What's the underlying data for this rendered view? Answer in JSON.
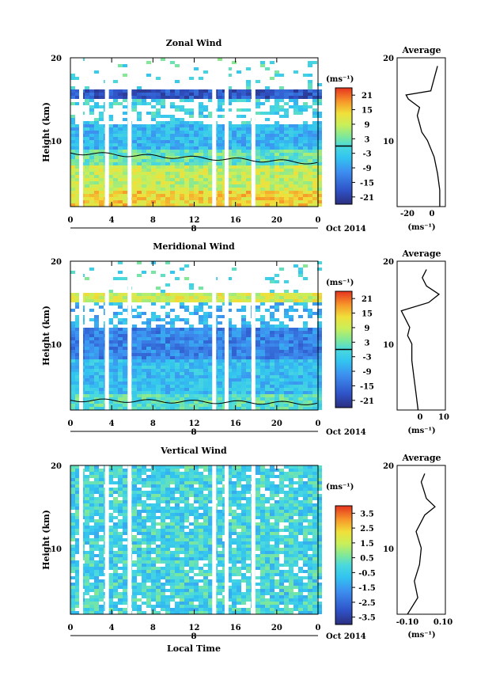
{
  "panels": [
    {
      "title": "Zonal Wind",
      "ylabel": "Height (km)",
      "yticks": [
        "20",
        "10"
      ],
      "xticks": [
        "0",
        "4",
        "8",
        "12",
        "16",
        "20",
        "0"
      ],
      "date_day": "8",
      "date_month": "Oct 2014",
      "unit_label": "(ms⁻¹)",
      "colorbar_ticks": [
        "21",
        "15",
        "9",
        "3",
        "-3",
        "-9",
        "-15",
        "-21"
      ],
      "colorbar_range": [
        -24,
        24
      ],
      "zero_contour": 0,
      "side_title": "Average",
      "side_yticks": [
        "20",
        "10"
      ],
      "side_xticks": [
        "-20",
        "0"
      ],
      "side_xlabel": "(ms⁻¹)"
    },
    {
      "title": "Meridional Wind",
      "ylabel": "Height (km)",
      "yticks": [
        "20",
        "10"
      ],
      "xticks": [
        "0",
        "4",
        "8",
        "12",
        "16",
        "20",
        "0"
      ],
      "date_day": "8",
      "date_month": "Oct 2014",
      "unit_label": "(ms⁻¹)",
      "colorbar_ticks": [
        "21",
        "15",
        "9",
        "3",
        "-3",
        "-9",
        "-15",
        "-21"
      ],
      "colorbar_range": [
        -24,
        24
      ],
      "zero_contour": 0,
      "side_title": "Average",
      "side_yticks": [
        "20",
        "10"
      ],
      "side_xticks": [
        "0",
        "10"
      ],
      "side_xlabel": "(ms⁻¹)"
    },
    {
      "title": "Vertical Wind",
      "ylabel": "Height (km)",
      "yticks": [
        "20",
        "10"
      ],
      "xticks": [
        "0",
        "4",
        "8",
        "12",
        "16",
        "20",
        "0"
      ],
      "date_day": "8",
      "date_month": "Oct 2014",
      "unit_label": "(ms⁻¹)",
      "colorbar_ticks": [
        "3.5",
        "2.5",
        "1.5",
        "0.5",
        "-0.5",
        "-1.5",
        "-2.5",
        "-3.5"
      ],
      "colorbar_range": [
        -4,
        4
      ],
      "zero_contour": null,
      "side_title": "Average",
      "side_yticks": [
        "20",
        "10"
      ],
      "side_xticks": [
        "-0.10",
        "0.10"
      ],
      "side_xlabel": "(ms⁻¹)"
    }
  ],
  "xlabel_bottom": "Local Time",
  "chart_data": [
    {
      "type": "heatmap",
      "title": "Zonal Wind",
      "ylabel": "Height (km)",
      "xlabel": "Local Time",
      "x_range": [
        0,
        24
      ],
      "y_range": [
        2,
        20
      ],
      "color_range": [
        -24,
        24
      ],
      "data_gaps_hours": [
        1.0,
        3.5,
        5.7,
        13.9,
        15.1,
        17.7
      ],
      "profile_heights_km": [
        2,
        4,
        6,
        8,
        10,
        11,
        12,
        13,
        14,
        15,
        15.5,
        16,
        17,
        18,
        19
      ],
      "profile_values": [
        8,
        8,
        6,
        3,
        -3,
        -8,
        -10,
        -12,
        -10,
        -20,
        -22,
        0,
        2,
        4,
        6
      ],
      "zonal_band": [
        {
          "height_km": [
            2,
            4
          ],
          "value": 14
        },
        {
          "height_km": [
            4,
            7
          ],
          "value": 9
        },
        {
          "height_km": [
            7,
            9
          ],
          "value": 2
        },
        {
          "height_km": [
            9,
            12
          ],
          "value": -6
        },
        {
          "height_km": [
            12,
            15
          ],
          "value": -2
        },
        {
          "height_km": [
            15,
            16
          ],
          "value": -18
        }
      ]
    },
    {
      "type": "heatmap",
      "title": "Meridional Wind",
      "ylabel": "Height (km)",
      "xlabel": "Local Time",
      "x_range": [
        0,
        24
      ],
      "y_range": [
        2,
        20
      ],
      "color_range": [
        -24,
        24
      ],
      "data_gaps_hours": [
        1.0,
        3.5,
        5.7,
        13.9,
        15.1,
        17.7
      ],
      "profile_heights_km": [
        2,
        4,
        6,
        8,
        10,
        11,
        12,
        13,
        14,
        15,
        16,
        17,
        18,
        19
      ],
      "profile_values": [
        0,
        -1,
        -2,
        -3,
        -3,
        -5,
        -4,
        -6,
        -8,
        5,
        10,
        4,
        2,
        4
      ],
      "zonal_band": [
        {
          "height_km": [
            2,
            4
          ],
          "value": 1
        },
        {
          "height_km": [
            4,
            8
          ],
          "value": -5
        },
        {
          "height_km": [
            8,
            12
          ],
          "value": -12
        },
        {
          "height_km": [
            12,
            15
          ],
          "value": -6
        },
        {
          "height_km": [
            15,
            16
          ],
          "value": 10
        }
      ]
    },
    {
      "type": "heatmap",
      "title": "Vertical Wind",
      "ylabel": "Height (km)",
      "xlabel": "Local Time",
      "x_range": [
        0,
        24
      ],
      "y_range": [
        2,
        20
      ],
      "color_range": [
        -4,
        4
      ],
      "data_gaps_hours": [
        1.0,
        3.5,
        5.7,
        13.9,
        15.1,
        17.7
      ],
      "profile_heights_km": [
        2,
        4,
        6,
        8,
        10,
        12,
        14,
        15,
        16,
        18,
        19
      ],
      "profile_values": [
        -0.08,
        -0.02,
        -0.04,
        -0.01,
        0.0,
        -0.03,
        0.02,
        0.08,
        0.03,
        0.0,
        0.02
      ],
      "zonal_band": [
        {
          "height_km": [
            2,
            20
          ],
          "value": -0.3
        }
      ]
    }
  ]
}
